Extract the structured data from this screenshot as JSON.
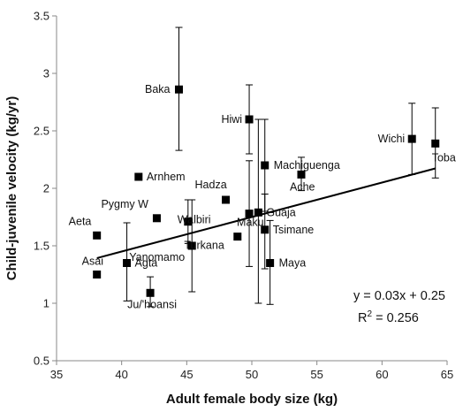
{
  "chart_data": {
    "type": "scatter",
    "title": "",
    "xlabel": "Adult female body size (kg)",
    "ylabel": "Child-juvenile velocity (kg/yr)",
    "xlim": [
      35,
      65
    ],
    "ylim": [
      0.5,
      3.5
    ],
    "xticks": [
      35,
      40,
      45,
      50,
      55,
      60,
      65
    ],
    "xtick_labels": [
      "35",
      "40",
      "45",
      "50",
      "55",
      "60",
      "65"
    ],
    "yticks": [
      0.5,
      1,
      1.5,
      2,
      2.5,
      3,
      3.5
    ],
    "ytick_labels": [
      "0.5",
      "1",
      "1.5",
      "2",
      "2.5",
      "3",
      "3.5"
    ],
    "grid": false,
    "points": [
      {
        "label": "Baka",
        "x": 44.4,
        "y": 2.86,
        "err_low": 2.33,
        "err_high": 3.4
      },
      {
        "label": "Hiwi",
        "x": 49.8,
        "y": 2.6,
        "err_low": 2.3,
        "err_high": 2.9
      },
      {
        "label": "Wichi",
        "x": 62.3,
        "y": 2.43,
        "err_low": 2.12,
        "err_high": 2.74
      },
      {
        "label": "Toba",
        "x": 64.1,
        "y": 2.39,
        "err_low": 2.09,
        "err_high": 2.7
      },
      {
        "label": "Machiguenga",
        "x": 51.0,
        "y": 2.2,
        "err_low": 1.8,
        "err_high": 2.6
      },
      {
        "label": "Ache",
        "x": 53.8,
        "y": 2.12,
        "err_low": 1.98,
        "err_high": 2.27
      },
      {
        "label": "Arnhem",
        "x": 41.3,
        "y": 2.1
      },
      {
        "label": "Hadza",
        "x": 48.0,
        "y": 1.9
      },
      {
        "label": "Pygmy W",
        "x": 42.7,
        "y": 1.74
      },
      {
        "label": "Walbiri",
        "x": 45.1,
        "y": 1.71,
        "err_low": 1.52,
        "err_high": 1.9
      },
      {
        "label": "Aeta",
        "x": 38.1,
        "y": 1.59
      },
      {
        "label": "Maku",
        "x": 49.8,
        "y": 1.78,
        "err_low": 1.32,
        "err_high": 2.24
      },
      {
        "label": "Guaja",
        "x": 50.5,
        "y": 1.79,
        "err_low": 1.0,
        "err_high": 2.6
      },
      {
        "label": "Tsimane",
        "x": 51.0,
        "y": 1.64,
        "err_low": 1.3,
        "err_high": 1.95
      },
      {
        "label": "Turkana",
        "x": 48.9,
        "y": 1.58
      },
      {
        "label": "Yanomamo",
        "x": 45.4,
        "y": 1.5,
        "err_low": 1.1,
        "err_high": 1.9
      },
      {
        "label": "Maya",
        "x": 51.4,
        "y": 1.35,
        "err_low": 0.99,
        "err_high": 1.72
      },
      {
        "label": "Agta",
        "x": 40.4,
        "y": 1.35,
        "err_low": 1.02,
        "err_high": 1.7
      },
      {
        "label": "Asai",
        "x": 38.1,
        "y": 1.25
      },
      {
        "label": "Ju/'hoansi",
        "x": 42.2,
        "y": 1.09,
        "err_low": 0.97,
        "err_high": 1.23
      }
    ],
    "trendline": {
      "slope": 0.03,
      "intercept": 0.25,
      "x_range": [
        38.1,
        64.1
      ]
    },
    "annotations": {
      "equation": "y = 0.03x + 0.25",
      "r2_label": "R",
      "r2_sup": "2",
      "r2_value": " = 0.256"
    }
  }
}
